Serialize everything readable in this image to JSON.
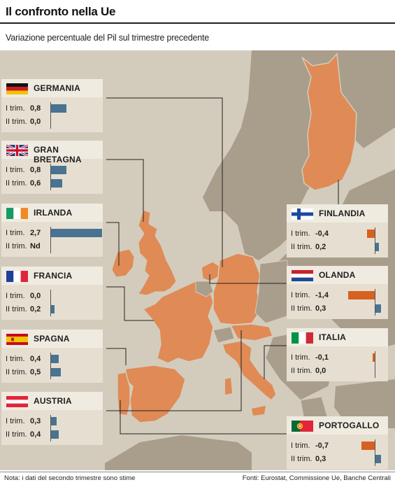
{
  "title": "Il confronto nella Ue",
  "subtitle": "Variazione percentuale del Pil sul trimestre precedente",
  "note": "Nota: i dati del secondo trimestre sono stime",
  "source": "Fonti: Eurostat, Commissione Ue, Banche Centrali",
  "colors": {
    "positive": "#4a7391",
    "negative": "#d56220",
    "land_highlight": "#e08a55",
    "land_other": "#a99d8c",
    "sea": "#d3ccbc",
    "panel": "#e6dfd1"
  },
  "chart_data": {
    "type": "bar",
    "series": [
      {
        "name": "I trim.",
        "values": [
          0.8,
          0.8,
          2.7,
          0.0,
          0.4,
          0.3,
          -0.4,
          -1.4,
          -0.1,
          -0.7
        ]
      },
      {
        "name": "II trim.",
        "values": [
          0.0,
          0.6,
          null,
          0.2,
          0.5,
          0.4,
          0.2,
          0.3,
          0.0,
          0.3
        ]
      }
    ],
    "categories": [
      "GERMANIA",
      "GRAN BRETAGNA",
      "IRLANDA",
      "FRANCIA",
      "SPAGNA",
      "AUSTRIA",
      "FINLANDIA",
      "OLANDA",
      "ITALIA",
      "PORTOGALLO"
    ],
    "countries": [
      {
        "id": "germania",
        "name": "GERMANIA",
        "flag": "germany-flag",
        "q1_label": "I trim.",
        "q2_label": "II trim.",
        "q1_text": "0,8",
        "q2_text": "0,0",
        "q1": 0.8,
        "q2": 0.0
      },
      {
        "id": "granbretagna",
        "name": "GRAN BRETAGNA",
        "flag": "uk-flag",
        "q1_label": "I trim.",
        "q2_label": "II trim.",
        "q1_text": "0,8",
        "q2_text": "0,6",
        "q1": 0.8,
        "q2": 0.6
      },
      {
        "id": "irlanda",
        "name": "IRLANDA",
        "flag": "ireland-flag",
        "q1_label": "I trim.",
        "q2_label": "II trim.",
        "q1_text": "2,7",
        "q2_text": "Nd",
        "q1": 2.7,
        "q2": null
      },
      {
        "id": "francia",
        "name": "FRANCIA",
        "flag": "france-flag",
        "q1_label": "I trim.",
        "q2_label": "II trim.",
        "q1_text": "0,0",
        "q2_text": "0,2",
        "q1": 0.0,
        "q2": 0.2
      },
      {
        "id": "spagna",
        "name": "SPAGNA",
        "flag": "spain-flag",
        "q1_label": "I trim.",
        "q2_label": "II trim.",
        "q1_text": "0,4",
        "q2_text": "0,5",
        "q1": 0.4,
        "q2": 0.5
      },
      {
        "id": "austria",
        "name": "AUSTRIA",
        "flag": "austria-flag",
        "q1_label": "I trim.",
        "q2_label": "II trim.",
        "q1_text": "0,3",
        "q2_text": "0,4",
        "q1": 0.3,
        "q2": 0.4
      },
      {
        "id": "finlandia",
        "name": "FINLANDIA",
        "flag": "finland-flag",
        "q1_label": "I trim.",
        "q2_label": "II trim.",
        "q1_text": "-0,4",
        "q2_text": "0,2",
        "q1": -0.4,
        "q2": 0.2
      },
      {
        "id": "olanda",
        "name": "OLANDA",
        "flag": "netherlands-flag",
        "q1_label": "I trim.",
        "q2_label": "II trim.",
        "q1_text": "-1,4",
        "q2_text": "0,3",
        "q1": -1.4,
        "q2": 0.3
      },
      {
        "id": "italia",
        "name": "ITALIA",
        "flag": "italy-flag",
        "q1_label": "I trim.",
        "q2_label": "II trim.",
        "q1_text": "-0,1",
        "q2_text": "0,0",
        "q1": -0.1,
        "q2": 0.0
      },
      {
        "id": "portogallo",
        "name": "PORTOGALLO",
        "flag": "portugal-flag",
        "q1_label": "I trim.",
        "q2_label": "II trim.",
        "q1_text": "-0,7",
        "q2_text": "0,3",
        "q1": -0.7,
        "q2": 0.3
      }
    ]
  }
}
